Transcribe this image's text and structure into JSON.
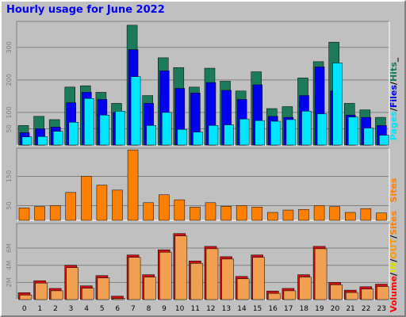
{
  "title": "Hourly usage for June 2022",
  "colors": {
    "hits": "#1a7a5a",
    "files": "#0000ee",
    "pages": "#00e5ff",
    "sites": "#ff8000",
    "volume": "#ff0000",
    "in": "#e0e000",
    "out": "#ff9900",
    "vol_fill": "#f0a050",
    "vol_back": "#cc1111"
  },
  "chart_data": [
    {
      "type": "bar",
      "name": "pages-files-hits",
      "categories": [
        "0",
        "1",
        "2",
        "3",
        "4",
        "5",
        "6",
        "7",
        "8",
        "9",
        "10",
        "11",
        "12",
        "13",
        "14",
        "15",
        "16",
        "17",
        "18",
        "19",
        "20",
        "21",
        "22",
        "23"
      ],
      "y_ticks": [
        "50",
        "100",
        "200",
        "300"
      ],
      "y_tick_values": [
        50,
        100,
        200,
        300
      ],
      "ylim": [
        0,
        370
      ],
      "series": [
        {
          "name": "Hits",
          "values": [
            60,
            88,
            78,
            178,
            182,
            162,
            128,
            368,
            152,
            268,
            238,
            178,
            236,
            196,
            166,
            225,
            112,
            118,
            206,
            256,
            316,
            128,
            108,
            85
          ]
        },
        {
          "name": "Files",
          "values": [
            38,
            50,
            55,
            130,
            162,
            140,
            100,
            293,
            128,
            228,
            174,
            160,
            192,
            168,
            140,
            185,
            88,
            85,
            152,
            240,
            166,
            92,
            85,
            60
          ]
        },
        {
          "name": "Pages",
          "values": [
            25,
            26,
            42,
            70,
            143,
            92,
            104,
            210,
            60,
            100,
            48,
            40,
            60,
            62,
            80,
            75,
            73,
            78,
            104,
            96,
            252,
            86,
            52,
            30
          ]
        }
      ],
      "legend": [
        "Pages",
        "/",
        "Files",
        "/",
        "Hits",
        "_"
      ]
    },
    {
      "type": "bar",
      "name": "sites",
      "categories": [
        "0",
        "1",
        "2",
        "3",
        "4",
        "5",
        "6",
        "7",
        "8",
        "9",
        "10",
        "11",
        "12",
        "13",
        "14",
        "15",
        "16",
        "17",
        "18",
        "19",
        "20",
        "21",
        "22",
        "23"
      ],
      "y_ticks": [
        "50",
        "150"
      ],
      "y_tick_values": [
        50,
        150
      ],
      "ylim": [
        0,
        235
      ],
      "series": [
        {
          "name": "Sites",
          "values": [
            42,
            47,
            50,
            95,
            150,
            120,
            103,
            240,
            60,
            87,
            70,
            45,
            60,
            48,
            50,
            45,
            27,
            35,
            37,
            50,
            47,
            27,
            40,
            25
          ]
        }
      ],
      "legend": [
        "Sites"
      ]
    },
    {
      "type": "bar",
      "name": "volume",
      "categories": [
        "0",
        "1",
        "2",
        "3",
        "4",
        "5",
        "6",
        "7",
        "8",
        "9",
        "10",
        "11",
        "12",
        "13",
        "14",
        "15",
        "16",
        "17",
        "18",
        "19",
        "20",
        "21",
        "22",
        "23"
      ],
      "y_ticks": [
        "2M",
        "4M",
        "6M"
      ],
      "y_tick_values": [
        2,
        4,
        6
      ],
      "ylim": [
        0,
        8.5
      ],
      "series": [
        {
          "name": "Volume",
          "values": [
            0.8,
            2.2,
            1.3,
            4.0,
            1.6,
            2.8,
            0.4,
            5.2,
            2.9,
            5.8,
            7.7,
            4.5,
            6.2,
            5.0,
            2.7,
            5.2,
            1.0,
            1.3,
            2.9,
            6.2,
            2.0,
            1.1,
            1.5,
            1.8
          ]
        }
      ],
      "legend": [
        "Volume",
        "/",
        "IN",
        "/",
        "OUT",
        "/",
        "Sites"
      ]
    }
  ],
  "x_axis_labels": [
    "0",
    "1",
    "2",
    "3",
    "4",
    "5",
    "6",
    "7",
    "8",
    "9",
    "10",
    "11",
    "12",
    "13",
    "14",
    "15",
    "16",
    "17",
    "18",
    "19",
    "20",
    "21",
    "22",
    "23"
  ]
}
